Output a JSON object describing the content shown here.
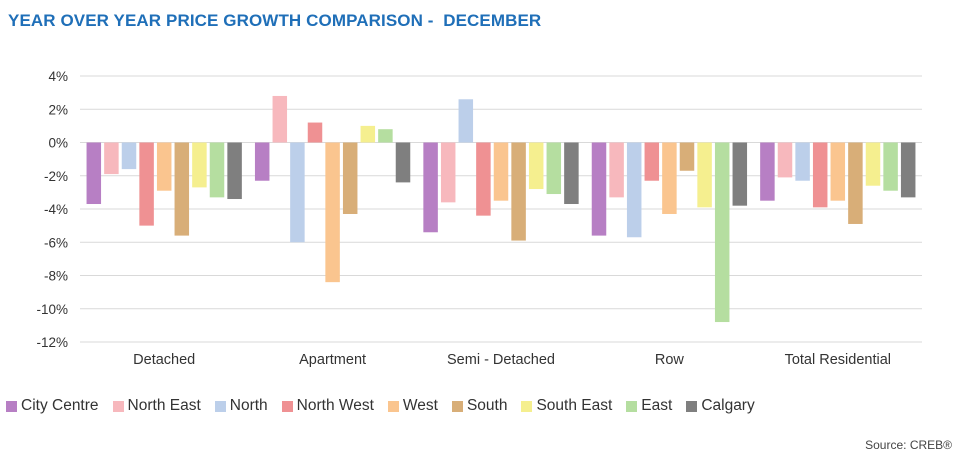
{
  "chart_data": {
    "type": "bar",
    "title": "YEAR OVER YEAR PRICE GROWTH COMPARISON -  DECEMBER",
    "categories": [
      "Detached",
      "Apartment",
      "Semi - Detached",
      "Row",
      "Total Residential"
    ],
    "ylim": [
      -12,
      4
    ],
    "yticks": [
      4,
      2,
      0,
      -2,
      -4,
      -6,
      -8,
      -10,
      -12
    ],
    "ytick_labels": [
      "4%",
      "2%",
      "0%",
      "-2%",
      "-4%",
      "-6%",
      "-8%",
      "-10%",
      "-12%"
    ],
    "grid": true,
    "legend_position": "bottom",
    "series": [
      {
        "name": "City Centre",
        "color": "#b77fc4",
        "values": [
          -3.7,
          -2.3,
          -5.4,
          -5.6,
          -3.5
        ]
      },
      {
        "name": "North East",
        "color": "#f7b8bd",
        "values": [
          -1.9,
          2.8,
          -3.6,
          -3.3,
          -2.1
        ]
      },
      {
        "name": "North",
        "color": "#bccfea",
        "values": [
          -1.6,
          -6.0,
          2.6,
          -5.7,
          -2.3
        ]
      },
      {
        "name": "North West",
        "color": "#ef9193",
        "values": [
          -5.0,
          1.2,
          -4.4,
          -2.3,
          -3.9
        ]
      },
      {
        "name": "West",
        "color": "#fac58f",
        "values": [
          -2.9,
          -8.4,
          -3.5,
          -4.3,
          -3.5
        ]
      },
      {
        "name": "South",
        "color": "#d8ae78",
        "values": [
          -5.6,
          -4.3,
          -5.9,
          -1.7,
          -4.9
        ]
      },
      {
        "name": "South East",
        "color": "#f5ef8f",
        "values": [
          -2.7,
          1.0,
          -2.8,
          -3.9,
          -2.6
        ]
      },
      {
        "name": "East",
        "color": "#b5dea0",
        "values": [
          -3.3,
          0.8,
          -3.1,
          -10.8,
          -2.9
        ]
      },
      {
        "name": "Calgary",
        "color": "#7f7f7f",
        "values": [
          -3.4,
          -2.4,
          -3.7,
          -3.8,
          -3.3
        ]
      }
    ]
  },
  "source": "Source: CREB®"
}
